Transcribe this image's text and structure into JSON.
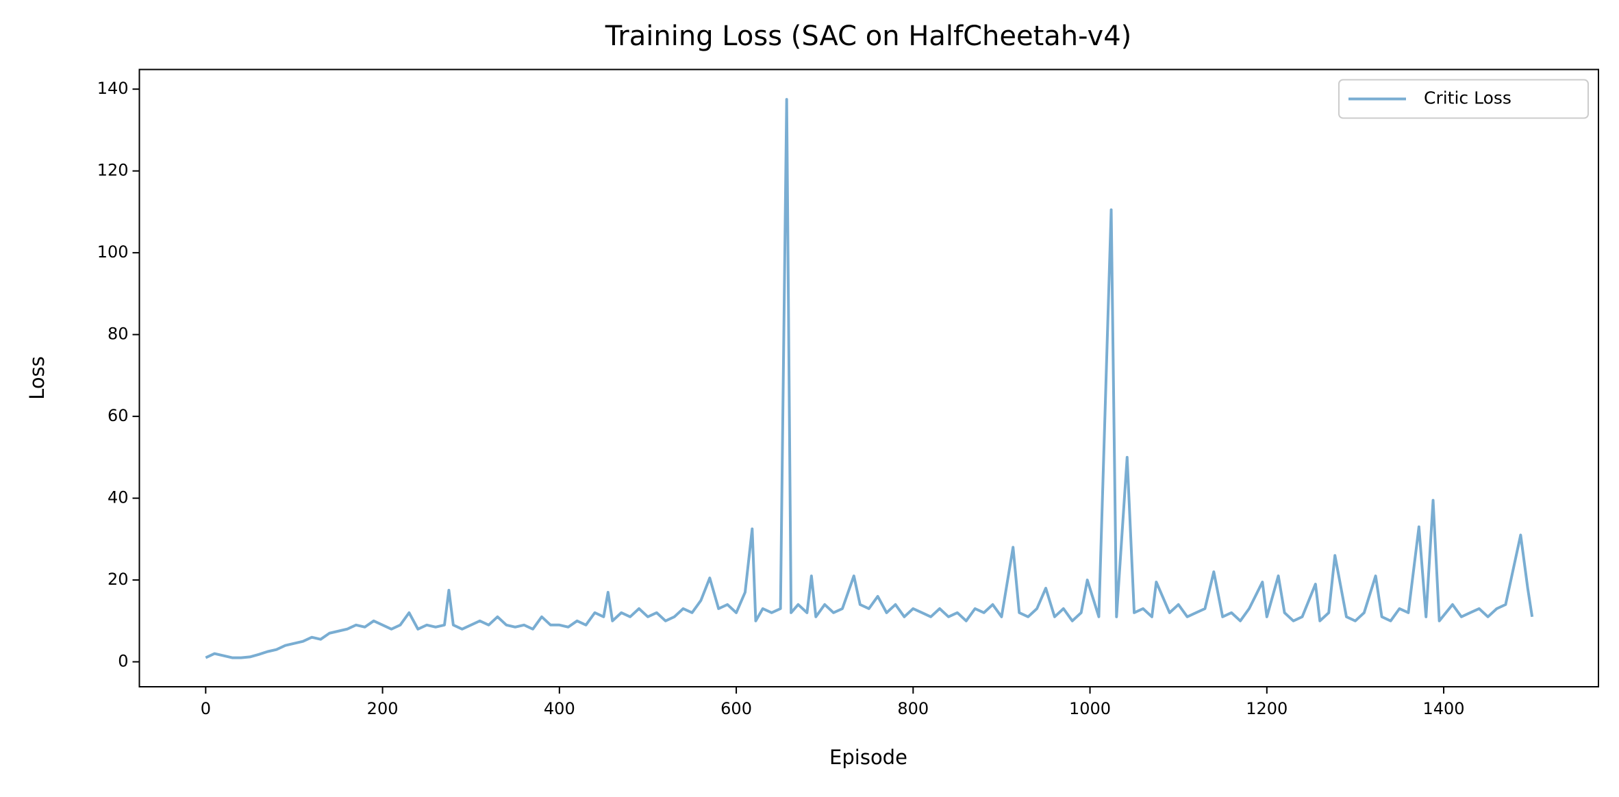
{
  "chart_data": {
    "type": "line",
    "title": "Training Loss (SAC on HalfCheetah-v4)",
    "xlabel": "Episode",
    "ylabel": "Loss",
    "xlim": [
      -75,
      1575
    ],
    "ylim": [
      -6.1,
      144.8
    ],
    "xticks": [
      0,
      200,
      400,
      600,
      800,
      1000,
      1200,
      1400
    ],
    "yticks": [
      0,
      20,
      40,
      60,
      80,
      100,
      120,
      140
    ],
    "legend": "upper right",
    "x": [
      0,
      10,
      20,
      30,
      40,
      50,
      60,
      70,
      80,
      90,
      100,
      110,
      120,
      130,
      140,
      150,
      160,
      170,
      180,
      190,
      200,
      210,
      220,
      230,
      240,
      250,
      260,
      270,
      275,
      280,
      290,
      300,
      310,
      320,
      330,
      340,
      350,
      360,
      370,
      380,
      390,
      400,
      410,
      420,
      430,
      440,
      450,
      455,
      460,
      470,
      480,
      490,
      500,
      510,
      520,
      530,
      540,
      550,
      560,
      570,
      580,
      590,
      600,
      610,
      618,
      622,
      630,
      640,
      650,
      657,
      662,
      670,
      680,
      685,
      690,
      700,
      710,
      720,
      733,
      740,
      750,
      760,
      770,
      780,
      790,
      800,
      810,
      820,
      830,
      840,
      850,
      860,
      870,
      880,
      890,
      900,
      913,
      920,
      930,
      940,
      950,
      960,
      970,
      980,
      990,
      997,
      1010,
      1024,
      1030,
      1042,
      1050,
      1060,
      1070,
      1075,
      1090,
      1100,
      1110,
      1120,
      1130,
      1140,
      1150,
      1160,
      1170,
      1180,
      1195,
      1200,
      1213,
      1220,
      1230,
      1240,
      1255,
      1260,
      1270,
      1277,
      1290,
      1300,
      1310,
      1323,
      1330,
      1340,
      1350,
      1360,
      1372,
      1380,
      1388,
      1395,
      1410,
      1420,
      1430,
      1440,
      1450,
      1460,
      1470,
      1487,
      1495,
      1500
    ],
    "series": [
      {
        "name": "Critic Loss",
        "color": "#79add2",
        "values": [
          1,
          2,
          1.5,
          1,
          1,
          1.2,
          1.8,
          2.5,
          3,
          4,
          4.5,
          5,
          6,
          5.5,
          7,
          7.5,
          8,
          9,
          8.5,
          10,
          9,
          8,
          9,
          12,
          8,
          9,
          8.5,
          9,
          17.5,
          9,
          8,
          9,
          10,
          9,
          11,
          9,
          8.5,
          9,
          8,
          11,
          9,
          9,
          8.5,
          10,
          9,
          12,
          11,
          17,
          10,
          12,
          11,
          13,
          11,
          12,
          10,
          11,
          13,
          12,
          15,
          20.5,
          13,
          14,
          12,
          17,
          32.5,
          10,
          13,
          12,
          13,
          137.5,
          12,
          14,
          12,
          21,
          11,
          14,
          12,
          13,
          21,
          14,
          13,
          16,
          12,
          14,
          11,
          13,
          12,
          11,
          13,
          11,
          12,
          10,
          13,
          12,
          14,
          11,
          28,
          12,
          11,
          13,
          18,
          11,
          13,
          10,
          12,
          20,
          11,
          110.5,
          11,
          50,
          12,
          13,
          11,
          19.5,
          12,
          14,
          11,
          12,
          13,
          22,
          11,
          12,
          10,
          13,
          19.5,
          11,
          21,
          12,
          10,
          11,
          19,
          10,
          12,
          26,
          11,
          10,
          12,
          21,
          11,
          10,
          13,
          12,
          33,
          11,
          39.5,
          10,
          14,
          11,
          12,
          13,
          11,
          13,
          14,
          31,
          18,
          11
        ]
      }
    ]
  }
}
